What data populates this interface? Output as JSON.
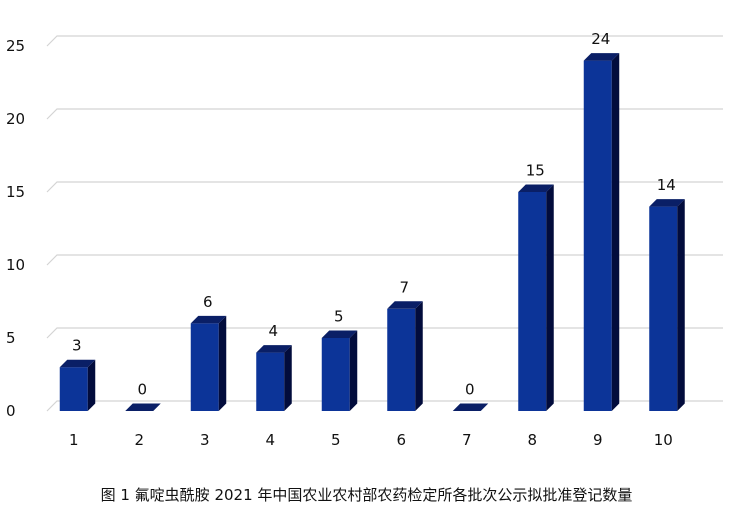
{
  "chart_data": {
    "type": "bar",
    "categories": [
      "1",
      "2",
      "3",
      "4",
      "5",
      "6",
      "7",
      "8",
      "9",
      "10"
    ],
    "values": [
      3,
      0,
      6,
      4,
      5,
      7,
      0,
      15,
      24,
      14
    ],
    "data_labels": [
      "3",
      "0",
      "6",
      "4",
      "5",
      "7",
      "0",
      "15",
      "24",
      "14"
    ],
    "y_ticks": [
      "0",
      "5",
      "10",
      "15",
      "20",
      "25"
    ],
    "ylim": [
      0,
      25
    ],
    "grid": true,
    "bar_style": "3d",
    "colors": {
      "bar_front": "#0c3498",
      "bar_side": "#020c3c",
      "bar_top": "#0a1f66",
      "gridline": "#d4d4d4"
    }
  },
  "caption": "图 1  氟啶虫酰胺 2021 年中国农业农村部农药检定所各批次公示拟批准登记数量"
}
